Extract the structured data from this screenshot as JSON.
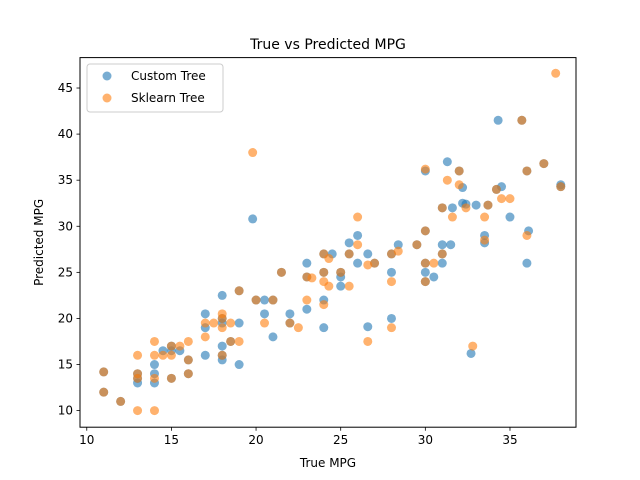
{
  "chart_data": {
    "type": "scatter",
    "title": "True vs Predicted MPG",
    "xlabel": "True MPG",
    "ylabel": "Predicted MPG",
    "xlim": [
      9.6,
      38.9
    ],
    "ylim": [
      8.2,
      48.3
    ],
    "xticks": [
      10,
      15,
      20,
      25,
      30,
      35
    ],
    "yticks": [
      10,
      15,
      20,
      25,
      30,
      35,
      40,
      45
    ],
    "grid": false,
    "legend_position": "top-left",
    "series": [
      {
        "name": "Custom Tree",
        "color": "#1f77b4",
        "points": [
          [
            11,
            14.2
          ],
          [
            11,
            12
          ],
          [
            12,
            11
          ],
          [
            13,
            13
          ],
          [
            13,
            13.5
          ],
          [
            13,
            14
          ],
          [
            14,
            13
          ],
          [
            14,
            14
          ],
          [
            14,
            15
          ],
          [
            14.5,
            16.5
          ],
          [
            15,
            16.5
          ],
          [
            15,
            17
          ],
          [
            15,
            13.5
          ],
          [
            15.5,
            16.5
          ],
          [
            16,
            14
          ],
          [
            16,
            15.5
          ],
          [
            17,
            16
          ],
          [
            17,
            19
          ],
          [
            17,
            20.5
          ],
          [
            18,
            15.5
          ],
          [
            18,
            16
          ],
          [
            18,
            17
          ],
          [
            18,
            19.5
          ],
          [
            18,
            20
          ],
          [
            18,
            22.5
          ],
          [
            18.5,
            17.5
          ],
          [
            19,
            15
          ],
          [
            19,
            19.5
          ],
          [
            19,
            23
          ],
          [
            19.8,
            30.8
          ],
          [
            20,
            22
          ],
          [
            20.5,
            20.5
          ],
          [
            20.5,
            22
          ],
          [
            21,
            18
          ],
          [
            21,
            22
          ],
          [
            21.5,
            25
          ],
          [
            22,
            19.5
          ],
          [
            22,
            20.5
          ],
          [
            23,
            21
          ],
          [
            23,
            24.5
          ],
          [
            23,
            26
          ],
          [
            24,
            19
          ],
          [
            24,
            22
          ],
          [
            24,
            25
          ],
          [
            24,
            27
          ],
          [
            24.5,
            27
          ],
          [
            25,
            23.5
          ],
          [
            25,
            24.5
          ],
          [
            25,
            25
          ],
          [
            25.5,
            27
          ],
          [
            25.5,
            28.2
          ],
          [
            26,
            29
          ],
          [
            26,
            26
          ],
          [
            26.6,
            19.1
          ],
          [
            26.6,
            27
          ],
          [
            27,
            26
          ],
          [
            28,
            20
          ],
          [
            28,
            25
          ],
          [
            28,
            27
          ],
          [
            28.4,
            28
          ],
          [
            29.5,
            28
          ],
          [
            30,
            24
          ],
          [
            30,
            26
          ],
          [
            30,
            29.5
          ],
          [
            30,
            36
          ],
          [
            30,
            25
          ],
          [
            30.5,
            24.5
          ],
          [
            31,
            28
          ],
          [
            31,
            26
          ],
          [
            31,
            27
          ],
          [
            31,
            32
          ],
          [
            31.3,
            37
          ],
          [
            31.5,
            28
          ],
          [
            31.6,
            32
          ],
          [
            32,
            36
          ],
          [
            32.2,
            34.2
          ],
          [
            32.2,
            32.5
          ],
          [
            32.4,
            32.4
          ],
          [
            32.7,
            16.2
          ],
          [
            33,
            32.3
          ],
          [
            33.5,
            29
          ],
          [
            33.5,
            28.2
          ],
          [
            33.7,
            32.3
          ],
          [
            34.2,
            34
          ],
          [
            34.3,
            41.5
          ],
          [
            34.5,
            34.3
          ],
          [
            35,
            31
          ],
          [
            35.7,
            41.5
          ],
          [
            36,
            26
          ],
          [
            36,
            36
          ],
          [
            36.1,
            29.5
          ],
          [
            37,
            36.8
          ],
          [
            38,
            34.3
          ],
          [
            38,
            34.5
          ]
        ]
      },
      {
        "name": "Sklearn Tree",
        "color": "#ff7f0e",
        "points": [
          [
            11,
            14.2
          ],
          [
            11,
            12
          ],
          [
            12,
            11
          ],
          [
            13,
            10
          ],
          [
            13,
            14
          ],
          [
            13,
            16
          ],
          [
            13,
            13.5
          ],
          [
            14,
            10
          ],
          [
            14,
            16
          ],
          [
            14,
            17.5
          ],
          [
            14,
            13.5
          ],
          [
            14.5,
            16
          ],
          [
            15,
            16
          ],
          [
            15,
            17
          ],
          [
            15,
            13.5
          ],
          [
            15.5,
            17
          ],
          [
            16,
            17.5
          ],
          [
            16,
            15.5
          ],
          [
            16,
            14
          ],
          [
            17,
            18
          ],
          [
            17,
            19.5
          ],
          [
            17.5,
            19.5
          ],
          [
            18,
            19
          ],
          [
            18,
            20
          ],
          [
            18,
            20.5
          ],
          [
            18,
            16
          ],
          [
            18.5,
            17.5
          ],
          [
            18.5,
            19.5
          ],
          [
            19,
            17.5
          ],
          [
            19,
            23
          ],
          [
            19.8,
            38
          ],
          [
            20,
            22
          ],
          [
            20.5,
            19.5
          ],
          [
            21,
            22
          ],
          [
            21.5,
            25
          ],
          [
            22,
            19.5
          ],
          [
            22.5,
            19
          ],
          [
            23,
            22
          ],
          [
            23,
            24.5
          ],
          [
            23.3,
            24.4
          ],
          [
            24,
            21.5
          ],
          [
            24,
            24
          ],
          [
            24,
            25
          ],
          [
            24,
            27
          ],
          [
            24.3,
            23.5
          ],
          [
            24.3,
            26.5
          ],
          [
            25,
            25
          ],
          [
            25.5,
            23.5
          ],
          [
            25.5,
            27
          ],
          [
            26,
            31
          ],
          [
            26,
            28
          ],
          [
            26.6,
            17.5
          ],
          [
            26.6,
            25.8
          ],
          [
            27,
            26
          ],
          [
            28,
            19
          ],
          [
            28,
            24
          ],
          [
            28,
            27
          ],
          [
            28.4,
            27.3
          ],
          [
            29.5,
            28
          ],
          [
            30,
            24
          ],
          [
            30,
            26
          ],
          [
            30,
            29.5
          ],
          [
            30,
            36.2
          ],
          [
            30.5,
            26
          ],
          [
            31,
            27
          ],
          [
            31,
            32
          ],
          [
            31.3,
            35
          ],
          [
            31.6,
            31
          ],
          [
            32,
            34.5
          ],
          [
            32,
            36
          ],
          [
            32.4,
            32
          ],
          [
            32.8,
            17
          ],
          [
            33.5,
            28.5
          ],
          [
            33.5,
            31
          ],
          [
            33.7,
            32.3
          ],
          [
            34.2,
            34
          ],
          [
            34.5,
            33
          ],
          [
            35,
            33
          ],
          [
            35.7,
            41.5
          ],
          [
            36,
            29
          ],
          [
            36,
            36
          ],
          [
            37,
            36.8
          ],
          [
            37.7,
            46.6
          ],
          [
            38,
            34.3
          ]
        ]
      }
    ]
  }
}
